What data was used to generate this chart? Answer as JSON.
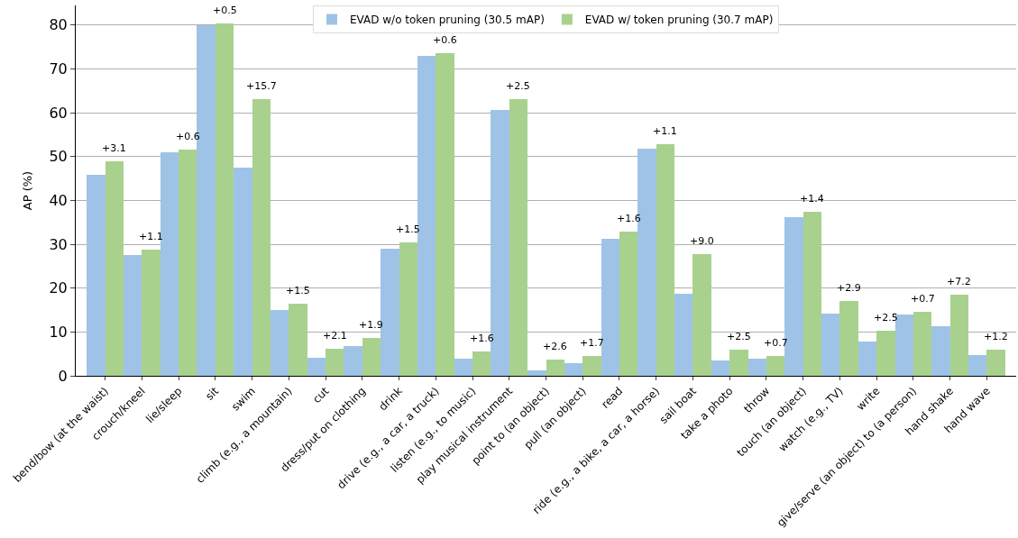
{
  "chart_data": {
    "type": "bar",
    "ylabel": "AP (%)",
    "categories": [
      "bend/bow (at the waist)",
      "crouch/kneel",
      "lie/sleep",
      "sit",
      "swim",
      "climb (e.g., a mountain)",
      "cut",
      "dress/put on clothing",
      "drink",
      "drive (e.g., a car, a truck)",
      "listen (e.g., to music)",
      "play musical instrument",
      "point to (an object)",
      "pull (an object)",
      "read",
      "ride (e.g., a bike, a car, a horse)",
      "sail boat",
      "take a photo",
      "throw",
      "touch (an object)",
      "watch (e.g., TV)",
      "write",
      "give/serve (an object) to (a person)",
      "hand shake",
      "hand wave"
    ],
    "series": [
      {
        "name": "EVAD w/o token pruning (30.5 mAP)",
        "color": "#9fc3e6",
        "values": [
          45.8,
          27.6,
          51.0,
          79.9,
          47.4,
          15.0,
          4.1,
          6.8,
          29.0,
          73.0,
          3.9,
          60.7,
          1.2,
          2.8,
          31.3,
          51.8,
          18.7,
          3.5,
          3.9,
          36.1,
          14.2,
          7.8,
          13.9,
          11.3,
          4.7
        ]
      },
      {
        "name": "EVAD w/ token pruning (30.7 mAP)",
        "color": "#a9d18e",
        "values": [
          48.9,
          28.7,
          51.6,
          80.4,
          63.1,
          16.5,
          6.2,
          8.7,
          30.5,
          73.6,
          5.5,
          63.2,
          3.8,
          4.5,
          32.9,
          52.9,
          27.7,
          6.0,
          4.6,
          37.5,
          17.1,
          10.3,
          14.6,
          18.5,
          5.9
        ]
      }
    ],
    "annotations": [
      {
        "text": "+3.1",
        "x": "bend/bow (at the waist)",
        "y": 48.9
      },
      {
        "text": "+1.1",
        "x": "crouch/kneel",
        "y": 28.7
      },
      {
        "text": "+0.6",
        "x": "lie/sleep",
        "y": 51.6
      },
      {
        "text": "+0.5",
        "x": "sit",
        "y": 80.4
      },
      {
        "text": "+15.7",
        "x": "swim",
        "y": 63.1
      },
      {
        "text": "+1.5",
        "x": "climb (e.g., a mountain)",
        "y": 16.5
      },
      {
        "text": "+2.1",
        "x": "cut",
        "y": 6.2
      },
      {
        "text": "+1.9",
        "x": "dress/put on clothing",
        "y": 8.7
      },
      {
        "text": "+1.5",
        "x": "drink",
        "y": 30.5
      },
      {
        "text": "+0.6",
        "x": "drive (e.g., a car, a truck)",
        "y": 73.6
      },
      {
        "text": "+1.6",
        "x": "listen (e.g., to music)",
        "y": 5.5
      },
      {
        "text": "+2.5",
        "x": "play musical instrument",
        "y": 63.2
      },
      {
        "text": "+2.6",
        "x": "point to (an object)",
        "y": 3.8
      },
      {
        "text": "+1.7",
        "x": "pull (an object)",
        "y": 4.5
      },
      {
        "text": "+1.6",
        "x": "read",
        "y": 32.9
      },
      {
        "text": "+1.1",
        "x": "ride (e.g., a bike, a car, a horse)",
        "y": 52.9
      },
      {
        "text": "+9.0",
        "x": "sail boat",
        "y": 27.7
      },
      {
        "text": "+2.5",
        "x": "take a photo",
        "y": 6.0
      },
      {
        "text": "+0.7",
        "x": "throw",
        "y": 4.6
      },
      {
        "text": "+1.4",
        "x": "touch (an object)",
        "y": 37.5
      },
      {
        "text": "+2.9",
        "x": "watch (e.g., TV)",
        "y": 17.1
      },
      {
        "text": "+2.5",
        "x": "write",
        "y": 10.3
      },
      {
        "text": "+0.7",
        "x": "give/serve (an object) to (a person)",
        "y": 14.6
      },
      {
        "text": "+7.2",
        "x": "hand shake",
        "y": 18.5
      },
      {
        "text": "+1.2",
        "x": "hand wave",
        "y": 5.9
      }
    ],
    "ylim": [
      0,
      84.5
    ],
    "yticks": [
      0,
      10,
      20,
      30,
      40,
      50,
      60,
      70,
      80
    ],
    "grid": "y",
    "legend": "top"
  }
}
